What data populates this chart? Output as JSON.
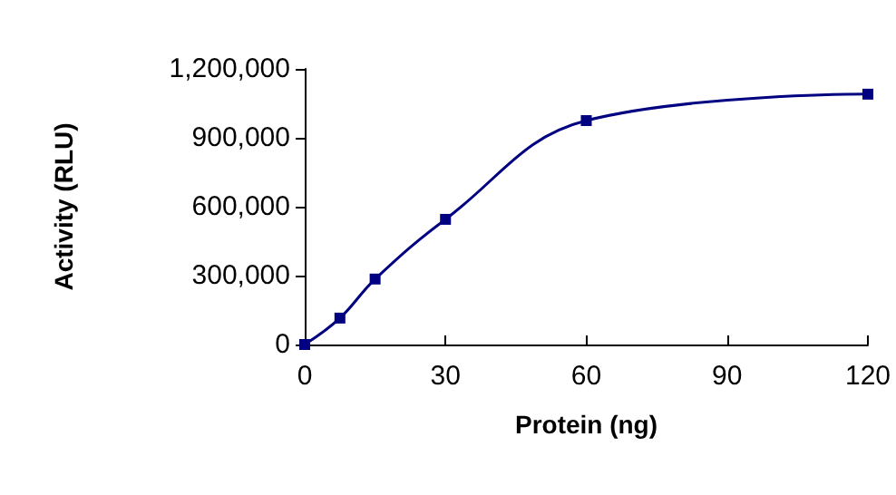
{
  "chart_data": {
    "type": "line",
    "xlabel": "Protein (ng)",
    "ylabel": "Activity (RLU)",
    "x": [
      0,
      7.5,
      15,
      30,
      60,
      120
    ],
    "series": [
      {
        "color": "#000080",
        "values": [
          0,
          115000,
          285000,
          545000,
          975000,
          1090000
        ]
      }
    ],
    "xlim": [
      0,
      120
    ],
    "xticks": [
      0,
      30,
      60,
      90,
      120
    ],
    "ylim": [
      0,
      1200000
    ],
    "yticks": [
      0,
      {
        "value": 300000,
        "label": "300,000"
      },
      {
        "value": 600000,
        "label": "600,000"
      },
      {
        "value": 900000,
        "label": "900,000"
      },
      {
        "value": 1200000,
        "label": "1,200,000"
      }
    ],
    "grid": false,
    "marker": "square",
    "line_style": "solid"
  }
}
